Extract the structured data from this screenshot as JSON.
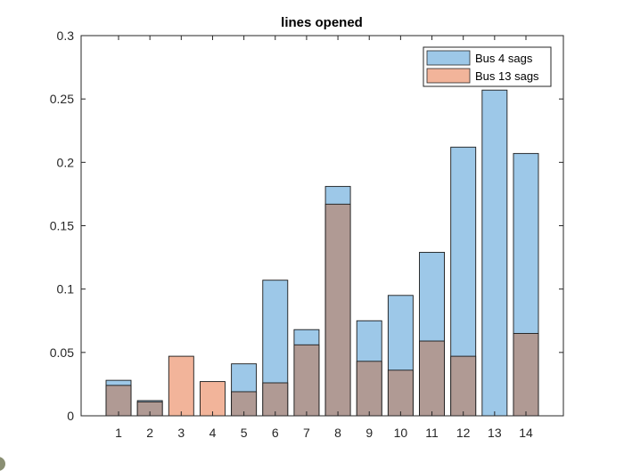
{
  "chart_data": {
    "type": "bar",
    "title": "lines opened",
    "xlabel": "",
    "ylabel": "",
    "categories": [
      "1",
      "2",
      "3",
      "4",
      "5",
      "6",
      "7",
      "8",
      "9",
      "10",
      "11",
      "12",
      "13",
      "14"
    ],
    "ylim": [
      0,
      0.3
    ],
    "yticks": [
      "0",
      "0.05",
      "0.1",
      "0.15",
      "0.2",
      "0.25",
      "0.3"
    ],
    "series": [
      {
        "name": "Bus 4 sags",
        "color": "#9dc8e8",
        "values": [
          0.028,
          0.012,
          0.0,
          0.0,
          0.041,
          0.107,
          0.068,
          0.181,
          0.075,
          0.095,
          0.129,
          0.212,
          0.257,
          0.207
        ]
      },
      {
        "name": "Bus 13 sags",
        "color": "#f2b49a",
        "values": [
          0.024,
          0.011,
          0.047,
          0.027,
          0.019,
          0.026,
          0.056,
          0.167,
          0.043,
          0.036,
          0.059,
          0.047,
          0.0,
          0.065
        ]
      }
    ],
    "overlap_color": "#b09a94",
    "legend_position": "top-right",
    "grid": false
  }
}
